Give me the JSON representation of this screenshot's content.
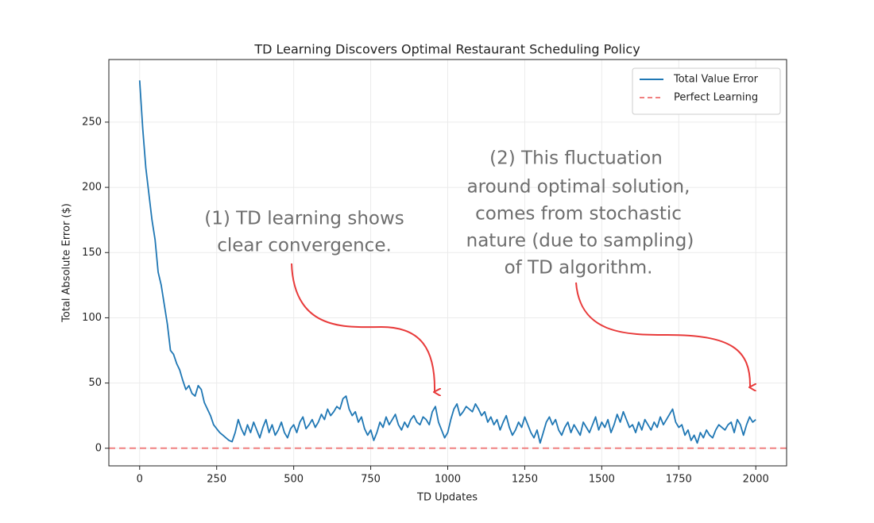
{
  "chart_data": {
    "type": "line",
    "title": "TD Learning Discovers Optimal Restaurant Scheduling Policy",
    "xlabel": "TD Updates",
    "ylabel": "Total Absolute Error ($)",
    "x": [
      0,
      10,
      20,
      30,
      40,
      50,
      60,
      70,
      80,
      90,
      100,
      110,
      120,
      130,
      140,
      150,
      160,
      170,
      180,
      190,
      200,
      210,
      220,
      230,
      240,
      250,
      260,
      270,
      280,
      290,
      300,
      310,
      320,
      330,
      340,
      350,
      360,
      370,
      380,
      390,
      400,
      410,
      420,
      430,
      440,
      450,
      460,
      470,
      480,
      490,
      500,
      510,
      520,
      530,
      540,
      550,
      560,
      570,
      580,
      590,
      600,
      610,
      620,
      630,
      640,
      650,
      660,
      670,
      680,
      690,
      700,
      710,
      720,
      730,
      740,
      750,
      760,
      770,
      780,
      790,
      800,
      810,
      820,
      830,
      840,
      850,
      860,
      870,
      880,
      890,
      900,
      910,
      920,
      930,
      940,
      950,
      960,
      970,
      980,
      990,
      1000,
      1010,
      1020,
      1030,
      1040,
      1050,
      1060,
      1070,
      1080,
      1090,
      1100,
      1110,
      1120,
      1130,
      1140,
      1150,
      1160,
      1170,
      1180,
      1190,
      1200,
      1210,
      1220,
      1230,
      1240,
      1250,
      1260,
      1270,
      1280,
      1290,
      1300,
      1310,
      1320,
      1330,
      1340,
      1350,
      1360,
      1370,
      1380,
      1390,
      1400,
      1410,
      1420,
      1430,
      1440,
      1450,
      1460,
      1470,
      1480,
      1490,
      1500,
      1510,
      1520,
      1530,
      1540,
      1550,
      1560,
      1570,
      1580,
      1590,
      1600,
      1610,
      1620,
      1630,
      1640,
      1650,
      1660,
      1670,
      1680,
      1690,
      1700,
      1710,
      1720,
      1730,
      1740,
      1750,
      1760,
      1770,
      1780,
      1790,
      1800,
      1810,
      1820,
      1830,
      1840,
      1850,
      1860,
      1870,
      1880,
      1890,
      1900,
      1910,
      1920,
      1930,
      1940,
      1950,
      1960,
      1970,
      1980,
      1990,
      2000
    ],
    "series": [
      {
        "name": "Total Value Error",
        "color": "#1f77b4",
        "values": [
          282,
          245,
          215,
          195,
          175,
          160,
          135,
          125,
          110,
          95,
          75,
          72,
          65,
          60,
          52,
          45,
          48,
          42,
          40,
          48,
          45,
          35,
          30,
          25,
          18,
          15,
          12,
          10,
          8,
          6,
          5,
          12,
          22,
          15,
          10,
          18,
          12,
          20,
          14,
          8,
          16,
          22,
          12,
          18,
          10,
          14,
          20,
          12,
          8,
          15,
          18,
          12,
          20,
          24,
          15,
          18,
          22,
          16,
          20,
          26,
          22,
          30,
          25,
          28,
          32,
          30,
          38,
          40,
          30,
          25,
          28,
          20,
          24,
          15,
          10,
          14,
          6,
          12,
          20,
          16,
          24,
          18,
          22,
          26,
          18,
          14,
          20,
          16,
          22,
          25,
          20,
          18,
          24,
          22,
          18,
          28,
          32,
          20,
          14,
          8,
          12,
          22,
          30,
          34,
          25,
          28,
          32,
          30,
          28,
          34,
          30,
          25,
          28,
          20,
          24,
          18,
          22,
          14,
          20,
          25,
          16,
          10,
          14,
          20,
          16,
          24,
          18,
          12,
          8,
          14,
          4,
          12,
          20,
          24,
          18,
          22,
          14,
          10,
          16,
          20,
          12,
          18,
          14,
          10,
          20,
          16,
          12,
          18,
          24,
          14,
          20,
          16,
          22,
          12,
          18,
          26,
          20,
          28,
          22,
          16,
          18,
          12,
          20,
          14,
          22,
          18,
          14,
          20,
          16,
          24,
          18,
          22,
          26,
          30,
          20,
          16,
          18,
          10,
          14,
          6,
          10,
          4,
          12,
          8,
          14,
          10,
          8,
          14,
          18,
          16,
          14,
          18,
          20,
          12,
          22,
          18,
          10,
          18,
          24,
          20,
          22
        ]
      }
    ],
    "hlines": [
      {
        "name": "Perfect Learning",
        "color": "#f08080",
        "value": 0
      }
    ],
    "xlim": [
      -100,
      2100
    ],
    "ylim": [
      -13.5,
      298
    ],
    "xticks": [
      0,
      250,
      500,
      750,
      1000,
      1250,
      1500,
      1750,
      2000
    ],
    "yticks": [
      0,
      50,
      100,
      150,
      200,
      250
    ],
    "grid": true,
    "legend": "upper right",
    "annotations": [
      {
        "lines": [
          "(1) TD learning shows",
          "clear convergence."
        ]
      },
      {
        "lines": [
          "(2) This fluctuation",
          "around optimal solution,",
          "comes from stochastic",
          "nature (due to sampling)",
          "of TD algorithm."
        ]
      }
    ]
  }
}
